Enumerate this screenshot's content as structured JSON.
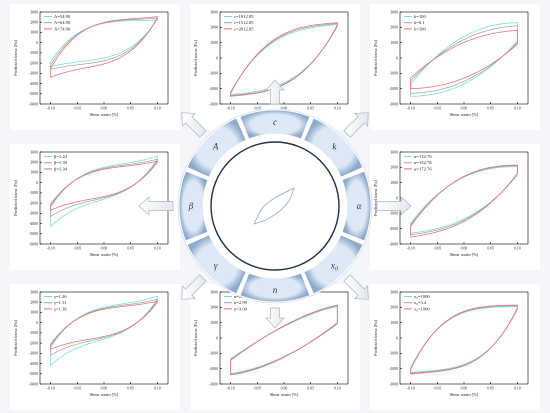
{
  "colors": {
    "s1": "#6fe0dc",
    "s2": "#a2a2a2",
    "s3": "#ec6d6d",
    "arrow_fill": "#e3e8ee",
    "arrow_stroke": "#a8b4c4",
    "wheel_light": "#dde9f6",
    "wheel_dark": "#8da9cc",
    "inner_ring": "#1f2e4a"
  },
  "center": {
    "params": [
      {
        "text": "c",
        "sub": ""
      },
      {
        "text": "k",
        "sub": ""
      },
      {
        "text": "α",
        "sub": ""
      },
      {
        "text": "x",
        "sub": "0"
      },
      {
        "text": "n",
        "sub": ""
      },
      {
        "text": "γ",
        "sub": ""
      },
      {
        "text": "β",
        "sub": ""
      },
      {
        "text": "A",
        "sub": ""
      }
    ]
  },
  "chart_data": [
    {
      "type": "line",
      "param": "A",
      "xlabel": "Shear strain [%]",
      "ylabel": "Predicted stress [Pa]",
      "xlim": [
        -0.12,
        0.12
      ],
      "ylim": [
        -6000,
        3000
      ],
      "xticks": [
        -0.1,
        -0.05,
        0.0,
        0.05,
        0.1
      ],
      "yticks": [
        3000,
        2000,
        1000,
        0,
        -1000,
        -2000,
        -3000,
        -4000,
        -5000,
        -6000
      ],
      "series": [
        {
          "name": "A=54.90",
          "color_key": "s1",
          "loop": {
            "top": 2150,
            "bot": -1700,
            "right": 2300,
            "left": -1850,
            "tipTop": 2200,
            "tipBot": -2350,
            "sharp": 4
          }
        },
        {
          "name": "A=64.90",
          "color_key": "s2",
          "loop": {
            "top": 2200,
            "bot": -2000,
            "right": 2350,
            "left": -2200,
            "tipTop": 2400,
            "tipBot": -2600,
            "sharp": 4
          }
        },
        {
          "name": "A=74.90",
          "color_key": "s3",
          "loop": {
            "top": 2250,
            "bot": -2300,
            "right": 2450,
            "left": -2550,
            "tipTop": 2550,
            "tipBot": -3400,
            "sharp": 4
          }
        }
      ]
    },
    {
      "type": "line",
      "param": "c",
      "xlabel": "Shear strain [%]",
      "ylabel": "Predicted stress [Pa]",
      "xlim": [
        -0.12,
        0.12
      ],
      "ylim": [
        -3000,
        3000
      ],
      "xticks": [
        -0.1,
        -0.05,
        0.0,
        0.05,
        0.1
      ],
      "yticks": [
        3000,
        2000,
        1000,
        0,
        -1000,
        -2000,
        -3000
      ],
      "series": [
        {
          "name": "c=1012.85",
          "color_key": "s1",
          "loop": {
            "top": 1900,
            "bot": -2100,
            "right": 2050,
            "left": -2200,
            "tipTop": 2200,
            "tipBot": -2400,
            "sharp": 3
          }
        },
        {
          "name": "c=1512.85",
          "color_key": "s2",
          "loop": {
            "top": 2000,
            "bot": -2200,
            "right": 2100,
            "left": -2250,
            "tipTop": 2250,
            "tipBot": -2450,
            "sharp": 3
          }
        },
        {
          "name": "c=2012.85",
          "color_key": "s3",
          "loop": {
            "top": 2100,
            "bot": -2250,
            "right": 2150,
            "left": -2300,
            "tipTop": 2300,
            "tipBot": -2500,
            "sharp": 3
          }
        }
      ]
    },
    {
      "type": "line",
      "param": "k",
      "xlabel": "Shear strain [%]",
      "ylabel": "Predicted stress [Pa]",
      "xlim": [
        -0.12,
        0.12
      ],
      "ylim": [
        -3000,
        3000
      ],
      "xticks": [
        -0.1,
        -0.05,
        0.0,
        0.05,
        0.1
      ],
      "yticks": [
        3000,
        2000,
        1000,
        0,
        -1000,
        -2000,
        -3000
      ],
      "series": [
        {
          "name": "k=100",
          "color_key": "s1",
          "loop": {
            "top": 2250,
            "bot": -2450,
            "right": 1100,
            "left": -1700,
            "tipTop": 2300,
            "tipBot": -2500,
            "sharp": 2.2
          }
        },
        {
          "name": "k=0.1",
          "color_key": "s2",
          "loop": {
            "top": 1900,
            "bot": -2200,
            "right": 1000,
            "left": -1500,
            "tipTop": 2100,
            "tipBot": -2300,
            "sharp": 2.2
          }
        },
        {
          "name": "k=100",
          "color_key": "s3",
          "loop": {
            "top": 1600,
            "bot": -1900,
            "right": 900,
            "left": -1300,
            "tipTop": 1800,
            "tipBot": -2000,
            "sharp": 2.2
          }
        }
      ]
    },
    {
      "type": "line",
      "param": "β",
      "xlabel": "Shear strain [%]",
      "ylabel": "Predicted stress [Pa]",
      "xlim": [
        -0.12,
        0.12
      ],
      "ylim": [
        -6000,
        3000
      ],
      "xticks": [
        -0.1,
        -0.05,
        0.0,
        0.05,
        0.1
      ],
      "yticks": [
        3000,
        2000,
        1000,
        0,
        -1000,
        -2000,
        -3000,
        -4000,
        -5000,
        -6000
      ],
      "series": [
        {
          "name": "β=1.44",
          "color_key": "s1",
          "loop": {
            "top": 1700,
            "bot": -1700,
            "right": 2300,
            "left": -2400,
            "tipTop": 2600,
            "tipBot": -4300,
            "sharp": 4
          }
        },
        {
          "name": "β=1.39",
          "color_key": "s2",
          "loop": {
            "top": 1600,
            "bot": -1600,
            "right": 2150,
            "left": -2250,
            "tipTop": 2300,
            "tipBot": -3300,
            "sharp": 4
          }
        },
        {
          "name": "β=1.34",
          "color_key": "s3",
          "loop": {
            "top": 1500,
            "bot": -1500,
            "right": 2000,
            "left": -2100,
            "tipTop": 2100,
            "tipBot": -2700,
            "sharp": 4
          }
        }
      ]
    },
    {
      "type": "line",
      "param": "α",
      "xlabel": "Shear strain [%]",
      "ylabel": "Predicted stress [Pa]",
      "xlim": [
        -0.12,
        0.12
      ],
      "ylim": [
        -3000,
        3000
      ],
      "xticks": [
        -0.1,
        -0.05,
        0.0,
        0.05,
        0.1
      ],
      "yticks": [
        3000,
        2000,
        1000,
        0,
        -1000,
        -2000,
        -3000
      ],
      "series": [
        {
          "name": "α=132.76",
          "color_key": "s1",
          "loop": {
            "top": 2000,
            "bot": -1900,
            "right": 1500,
            "left": -1650,
            "tipTop": 2050,
            "tipBot": -2300,
            "sharp": 2.5
          }
        },
        {
          "name": "α=152.76",
          "color_key": "s2",
          "loop": {
            "top": 2050,
            "bot": -2000,
            "right": 1550,
            "left": -1750,
            "tipTop": 2100,
            "tipBot": -2400,
            "sharp": 2.5
          }
        },
        {
          "name": "α=172.76",
          "color_key": "s3",
          "loop": {
            "top": 2100,
            "bot": -2100,
            "right": 1600,
            "left": -1850,
            "tipTop": 2150,
            "tipBot": -2550,
            "sharp": 2.5
          }
        }
      ]
    },
    {
      "type": "line",
      "param": "γ",
      "xlabel": "Shear strain [%]",
      "ylabel": "Predicted stress [Pa]",
      "xlim": [
        -0.12,
        0.12
      ],
      "ylim": [
        -6000,
        3000
      ],
      "xticks": [
        -0.1,
        -0.05,
        0.0,
        0.05,
        0.1
      ],
      "yticks": [
        3000,
        2000,
        1000,
        0,
        -1000,
        -2000,
        -3000,
        -4000,
        -5000,
        -6000
      ],
      "series": [
        {
          "name": "γ=1.26",
          "color_key": "s1",
          "loop": {
            "top": 1700,
            "bot": -1700,
            "right": 2300,
            "left": -2400,
            "tipTop": 2600,
            "tipBot": -4200,
            "sharp": 4
          }
        },
        {
          "name": "γ=1.31",
          "color_key": "s2",
          "loop": {
            "top": 1600,
            "bot": -1600,
            "right": 2150,
            "left": -2250,
            "tipTop": 2300,
            "tipBot": -3200,
            "sharp": 4
          }
        },
        {
          "name": "γ=1.36",
          "color_key": "s3",
          "loop": {
            "top": 1500,
            "bot": -1500,
            "right": 2000,
            "left": -2100,
            "tipTop": 2100,
            "tipBot": -2600,
            "sharp": 4
          }
        }
      ]
    },
    {
      "type": "line",
      "param": "n",
      "xlabel": "Shear strain [%]",
      "ylabel": "Predicted stress [Pa]",
      "xlim": [
        -0.12,
        0.12
      ],
      "ylim": [
        -3000,
        3000
      ],
      "xticks": [
        -0.1,
        -0.05,
        0.0,
        0.05,
        0.1
      ],
      "yticks": [
        3000,
        2000,
        1000,
        0,
        -1000,
        -2000,
        -3000
      ],
      "series": [
        {
          "name": "n=2.94",
          "color_key": "s1",
          "loop": {
            "top": 1300,
            "bot": -1900,
            "right": 900,
            "left": -1350,
            "tipTop": 2050,
            "tipBot": -2300,
            "sharp": 1.8
          }
        },
        {
          "name": "n=2.99",
          "color_key": "s2",
          "loop": {
            "top": 1350,
            "bot": -1950,
            "right": 950,
            "left": -1400,
            "tipTop": 2100,
            "tipBot": -2350,
            "sharp": 1.8
          }
        },
        {
          "name": "n=3.04",
          "color_key": "s3",
          "loop": {
            "top": 1400,
            "bot": -2000,
            "right": 1000,
            "left": -1450,
            "tipTop": 2150,
            "tipBot": -2400,
            "sharp": 1.8
          }
        }
      ]
    },
    {
      "type": "line",
      "param": "x0",
      "xlabel": "Shear strain [%]",
      "ylabel": "Predicted stress [Pa]",
      "xlim": [
        -0.12,
        0.12
      ],
      "ylim": [
        -3000,
        3000
      ],
      "xticks": [
        -0.1,
        -0.05,
        0.0,
        0.05,
        0.1
      ],
      "yticks": [
        3000,
        2000,
        1000,
        0,
        -1000,
        -2000,
        -3000
      ],
      "series": [
        {
          "name": "x₀=1000",
          "color_key": "s1",
          "loop": {
            "top": 2000,
            "bot": -2050,
            "right": 1850,
            "left": -1950,
            "tipTop": 2050,
            "tipBot": -2250,
            "sharp": 3.5
          }
        },
        {
          "name": "x₀=3.4",
          "color_key": "s2",
          "loop": {
            "top": 2050,
            "bot": -2100,
            "right": 1900,
            "left": -2000,
            "tipTop": 2100,
            "tipBot": -2300,
            "sharp": 3.5
          }
        },
        {
          "name": "x₀=1000",
          "color_key": "s3",
          "loop": {
            "top": 2100,
            "bot": -2150,
            "right": 1950,
            "left": -2050,
            "tipTop": 2150,
            "tipBot": -2350,
            "sharp": 3.5
          }
        }
      ]
    }
  ]
}
